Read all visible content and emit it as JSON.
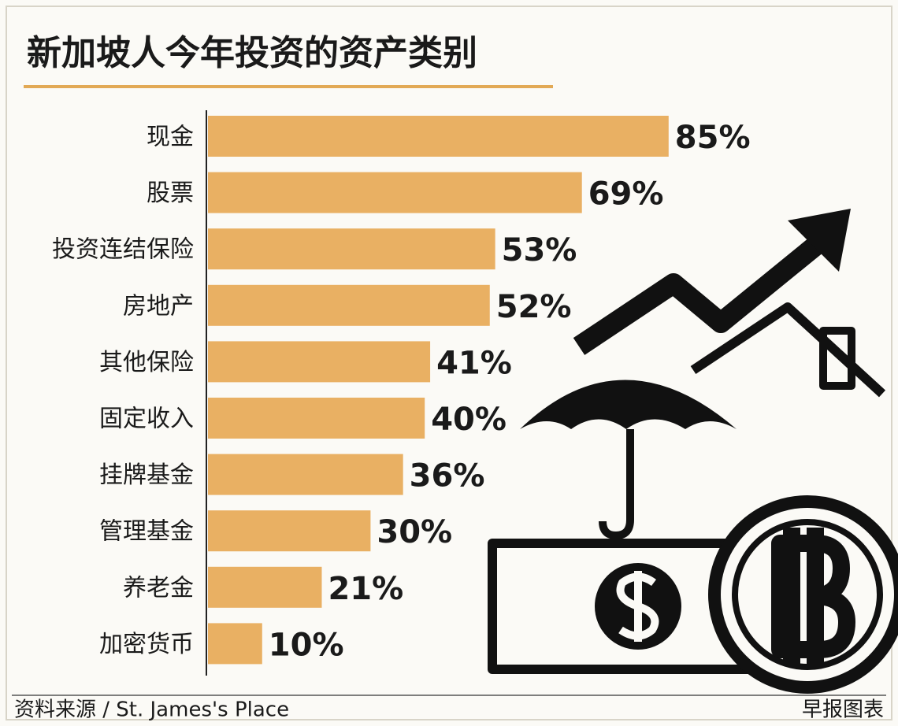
{
  "chart_data": {
    "type": "bar",
    "orientation": "horizontal",
    "title": "新加坡人今年投资的资产类别",
    "categories": [
      "现金",
      "股票",
      "投资连结保险",
      "房地产",
      "其他保险",
      "固定收入",
      "挂牌基金",
      "管理基金",
      "养老金",
      "加密货币"
    ],
    "values": [
      85,
      69,
      53,
      52,
      41,
      40,
      36,
      30,
      21,
      10
    ],
    "value_labels": [
      "85%",
      "69%",
      "53%",
      "52%",
      "41%",
      "40%",
      "36%",
      "30%",
      "21%",
      "10%"
    ],
    "color": "#e9b063",
    "source": "资料来源 / St. James's Place",
    "credit": "早报图表"
  }
}
